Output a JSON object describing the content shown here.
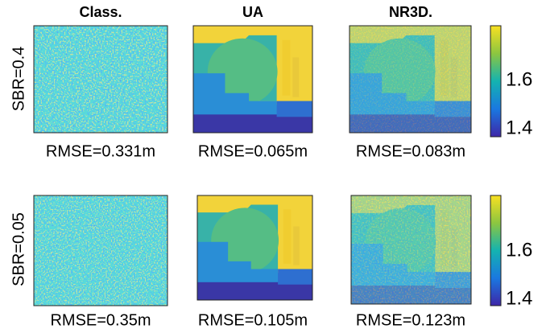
{
  "columns": [
    "Class.",
    "UA",
    "NR3D."
  ],
  "rows": [
    {
      "label": "SBR=0.4",
      "rmse": [
        "RMSE=0.331m",
        "RMSE=0.065m",
        "RMSE=0.083m"
      ],
      "colorbar_ticks": [
        "1.6",
        "1.4"
      ]
    },
    {
      "label": "SBR=0.05",
      "rmse": [
        "RMSE=0.35m",
        "RMSE=0.105m",
        "RMSE=0.123m"
      ],
      "colorbar_ticks": [
        "1.6",
        "1.4"
      ]
    }
  ]
}
